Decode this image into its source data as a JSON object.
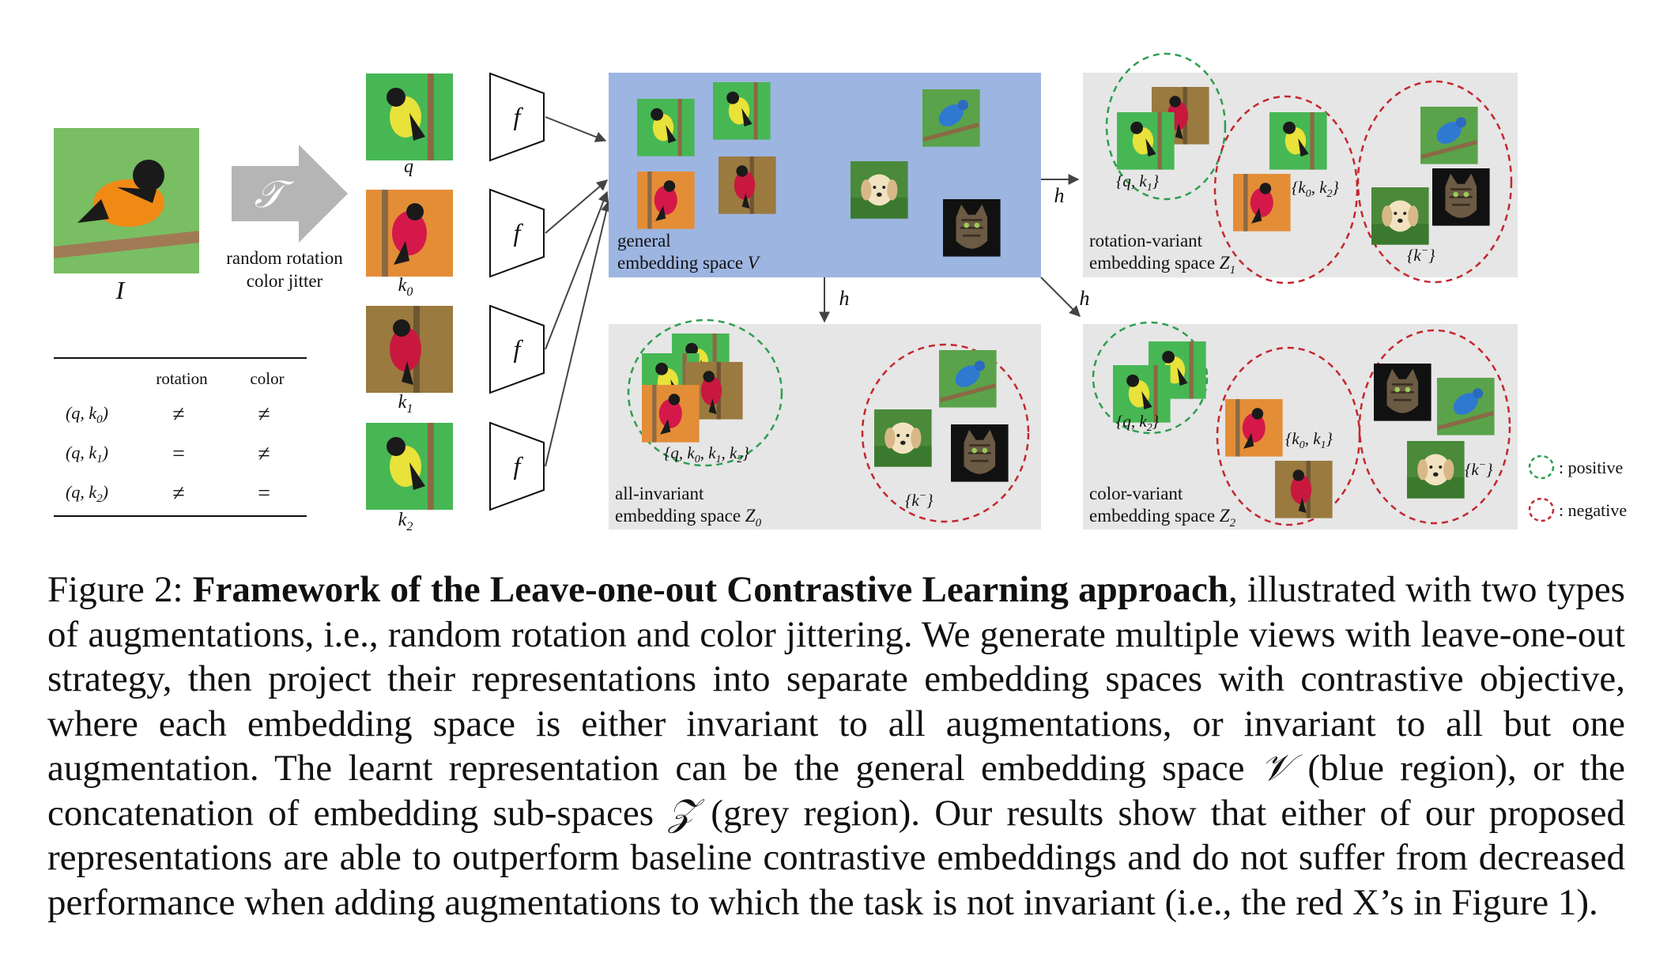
{
  "figure": {
    "input_label": "I",
    "transform_symbol": "𝒯",
    "transform_caption_line1": "random rotation",
    "transform_caption_line2": "color jitter",
    "view_labels": [
      "q",
      "k",
      "k",
      "k"
    ],
    "view_subscripts": [
      "",
      "0",
      "1",
      "2"
    ],
    "encoder_label": "f",
    "head_label": "h",
    "table": {
      "headers": [
        "rotation",
        "color"
      ],
      "rows": [
        {
          "pair": "(q, k",
          "sub": "0",
          "close": ")",
          "rotation": "≠",
          "color": "≠"
        },
        {
          "pair": "(q, k",
          "sub": "1",
          "close": ")",
          "rotation": "=",
          "color": "≠"
        },
        {
          "pair": "(q, k",
          "sub": "2",
          "close": ")",
          "rotation": "≠",
          "color": "="
        }
      ]
    },
    "general_space": {
      "line1": "general",
      "line2": "embedding space ",
      "symbol": "V"
    },
    "rot_space": {
      "line1": "rotation-variant",
      "line2": "embedding space ",
      "symbol": "Z",
      "sub": "1",
      "pos_set": "{q, k",
      "pos_sub": "1",
      "mid_set": "{k",
      "mid_sub": "0",
      "mid_rest": ", k",
      "mid_sub2": "2",
      "neg_set": "{k",
      "neg_sup": "−"
    },
    "inv_space": {
      "line1": "all-invariant",
      "line2": "embedding space ",
      "symbol": "Z",
      "sub": "0",
      "pos_set": "{q, k",
      "pos_sub": "0",
      "pos_rest": ", k",
      "pos_sub2": "1",
      "pos_rest2": ", k",
      "pos_sub3": "2",
      "neg_set": "{k",
      "neg_sup": "−"
    },
    "col_space": {
      "line1": "color-variant",
      "line2": "embedding space ",
      "symbol": "Z",
      "sub": "2",
      "pos_set": "{q, k",
      "pos_sub": "2",
      "mid_set": "{k",
      "mid_sub": "0",
      "mid_rest": ", k",
      "mid_sub2": "1",
      "neg_set": "{k",
      "neg_sup": "−"
    },
    "legend": {
      "positive": ": positive",
      "negative": ": negative"
    },
    "colors": {
      "blue_region": "#9db5e1",
      "grey_region": "#e6e6e6",
      "positive": "#2e9e4f",
      "negative": "#c4272e"
    }
  },
  "caption": {
    "prefix": "Figure 2: ",
    "bold": "Framework of the Leave-one-out Contrastive Learning approach",
    "part1": ", illustrated with two types of augmentations, i.e., random rotation and color jittering. We generate multiple views with leave-one-out strategy, then project their representations into separate embedding spaces with contrastive objective, where each embedding space is either invariant to all augmentations, or invariant to all but one augmentation. The learnt representation can be the general embedding space ",
    "sym_v": "𝒱",
    "part2": " (blue region), or the concatenation of embedding sub-spaces ",
    "sym_z": "𝒵",
    "part3": " (grey region). Our results show that either of our proposed representations are able to outperform baseline contrastive embeddings and do not suffer from decreased performance when adding augmentations to which the task is not invariant (i.e., the red X’s in Figure 1)."
  }
}
